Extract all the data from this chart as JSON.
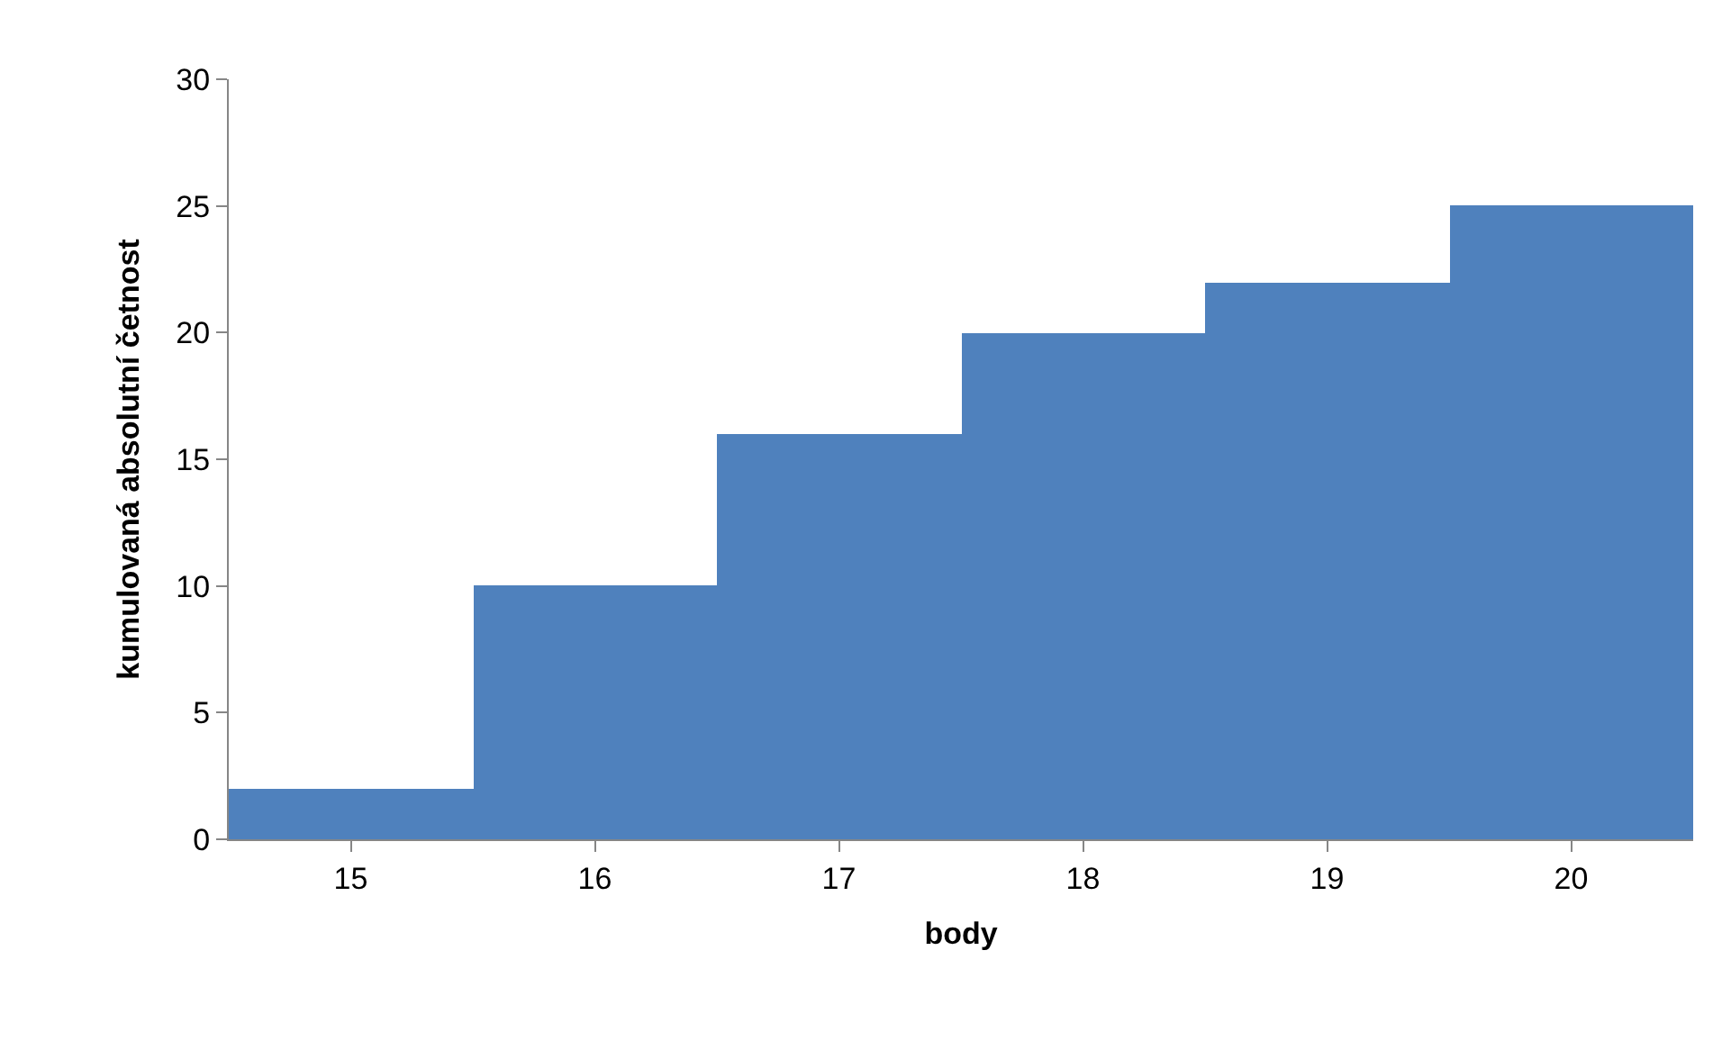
{
  "chart_data": {
    "type": "bar",
    "xlabel": "body",
    "ylabel": "kumulovaná absolutní četnost",
    "categories": [
      "15",
      "16",
      "17",
      "18",
      "19",
      "20"
    ],
    "values": [
      2,
      10,
      16,
      20,
      22,
      25
    ],
    "color": "#4f81bd",
    "ylim": [
      0,
      30
    ],
    "yticks": [
      0,
      5,
      10,
      15,
      20,
      25,
      30
    ]
  }
}
